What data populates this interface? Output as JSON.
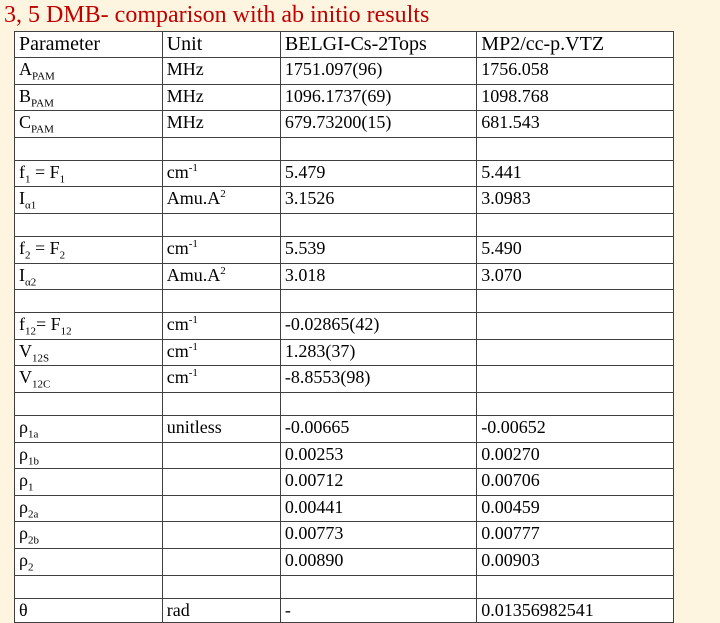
{
  "title": "3, 5 DMB- comparison with ab initio results",
  "header": {
    "param": "Parameter",
    "unit": "Unit",
    "belgi": "BELGI-Cs-2Tops",
    "mp2": "MP2/cc-p.VTZ"
  },
  "rows": [
    {
      "param_html": "A<sub>PAM</sub>",
      "unit_html": "MHz",
      "belgi": "1751.097(96)",
      "mp2": "1756.058"
    },
    {
      "param_html": "B<sub>PAM</sub>",
      "unit_html": "MHz",
      "belgi": "1096.1737(69)",
      "mp2": "1098.768"
    },
    {
      "param_html": "C<sub>PAM</sub>",
      "unit_html": "MHz",
      "belgi": "679.73200(15)",
      "mp2": "  681.543"
    },
    {
      "param_html": "",
      "unit_html": "",
      "belgi": "",
      "mp2": ""
    },
    {
      "param_html": "f<sub>1</sub> = F<sub>1</sub>",
      "unit_html": "cm<sup>-1</sup>",
      "belgi": "5.479",
      "mp2": "5.441"
    },
    {
      "param_html": "I<sub>α1</sub>",
      "unit_html": "Amu.A<sup>2</sup>",
      "belgi": "3.1526",
      "mp2": "3.0983"
    },
    {
      "param_html": "",
      "unit_html": "",
      "belgi": "",
      "mp2": ""
    },
    {
      "param_html": "f<sub>2</sub> = F<sub>2</sub>",
      "unit_html": "cm<sup>-1</sup>",
      "belgi": "5.539",
      "mp2": "5.490"
    },
    {
      "param_html": "I<sub>α2</sub>",
      "unit_html": "Amu.A<sup>2</sup>",
      "belgi": "3.018",
      "mp2": "3.070"
    },
    {
      "param_html": "",
      "unit_html": "",
      "belgi": "",
      "mp2": ""
    },
    {
      "param_html": "f<sub>12</sub>= F<sub>12</sub>",
      "unit_html": "cm<sup>-1</sup>",
      "belgi": "-0.02865(42)",
      "mp2": ""
    },
    {
      "param_html": "V<sub>12S</sub>",
      "unit_html": "cm<sup>-1</sup>",
      "belgi": "1.283(37)",
      "mp2": ""
    },
    {
      "param_html": "V<sub>12C</sub>",
      "unit_html": "cm<sup>-1</sup>",
      "belgi": "-8.8553(98)",
      "mp2": ""
    },
    {
      "param_html": "",
      "unit_html": "",
      "belgi": "",
      "mp2": ""
    },
    {
      "param_html": "ρ<sub>1a</sub>",
      "unit_html": "unitless",
      "belgi": "-0.00665",
      "mp2": "-0.00652"
    },
    {
      "param_html": "ρ<sub>1b</sub>",
      "unit_html": "",
      "belgi": "0.00253",
      "mp2": "0.00270"
    },
    {
      "param_html": "ρ<sub>1</sub>",
      "unit_html": "",
      "belgi": "0.00712",
      "mp2": "0.00706"
    },
    {
      "param_html": "ρ<sub>2a</sub>",
      "unit_html": "",
      "belgi": "0.00441",
      "mp2": "0.00459"
    },
    {
      "param_html": "ρ<sub>2b</sub>",
      "unit_html": "",
      "belgi": "0.00773",
      "mp2": "0.00777"
    },
    {
      "param_html": "ρ<sub>2</sub>",
      "unit_html": "",
      "belgi": "0.00890",
      "mp2": "0.00903"
    },
    {
      "param_html": "",
      "unit_html": "",
      "belgi": "",
      "mp2": ""
    },
    {
      "param_html": "θ",
      "unit_html": "rad",
      "belgi": "-",
      "mp2": "0.01356982541"
    }
  ]
}
